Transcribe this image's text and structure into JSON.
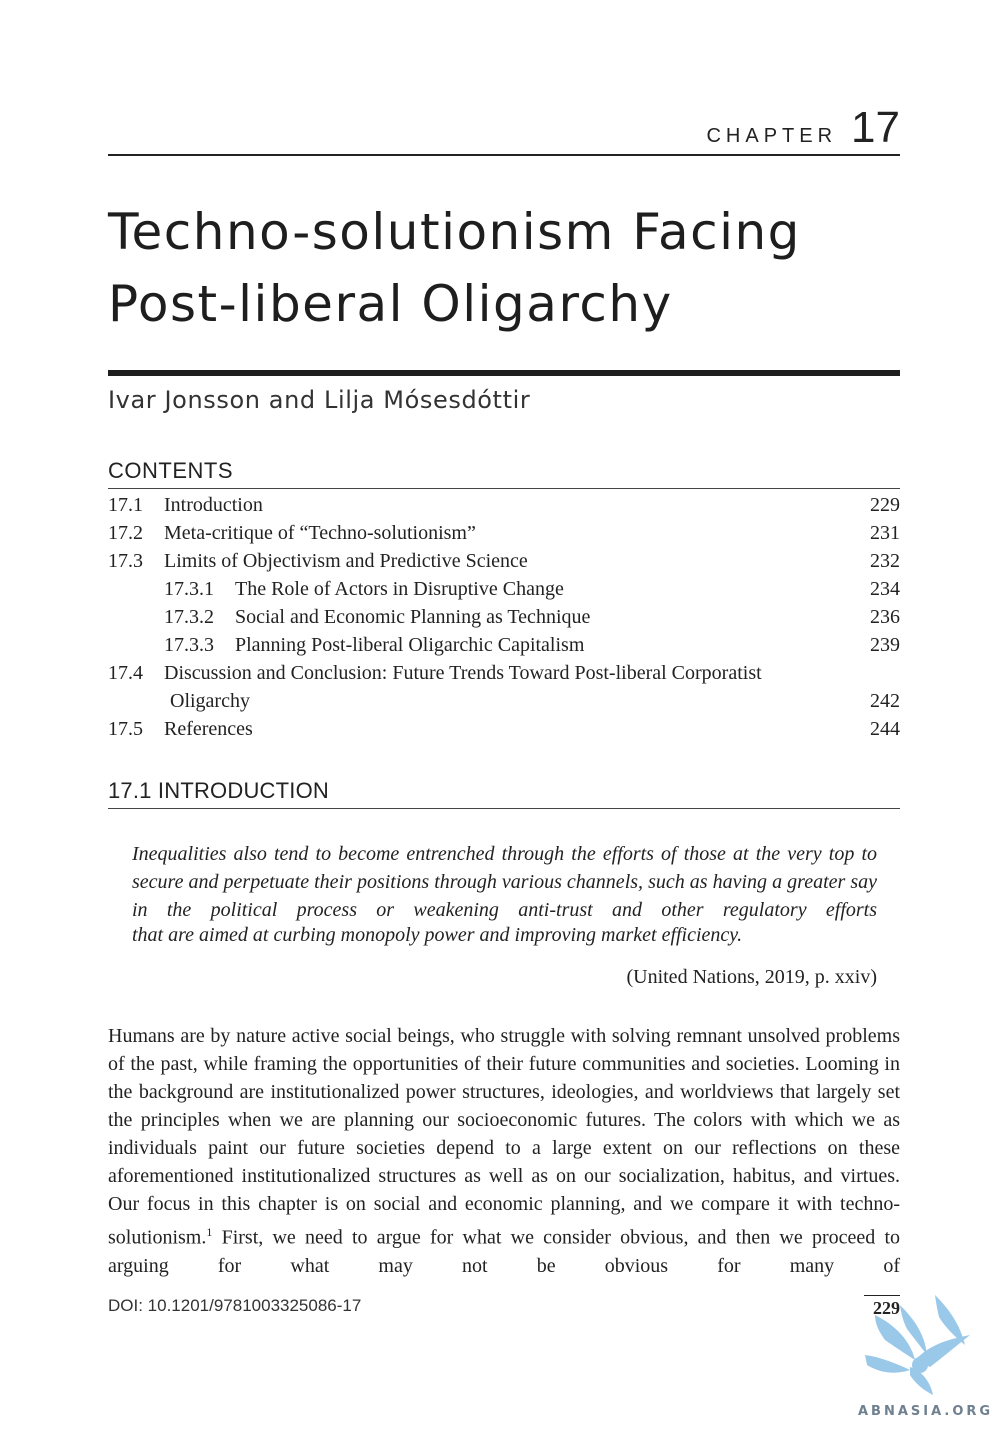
{
  "header": {
    "chapter_word": "CHAPTER",
    "chapter_number": "17"
  },
  "title_line1": "Techno-solutionism Facing",
  "title_line2": "Post-liberal Oligarchy",
  "authors": "Ivar Jonsson and Lilja Mósesdóttir",
  "contents": {
    "heading": "CONTENTS",
    "entries": [
      {
        "num": "17.1",
        "title": "Introduction",
        "page": "229"
      },
      {
        "num": "17.2",
        "title": "Meta-critique of “Techno-solutionism”",
        "page": "231"
      },
      {
        "num": "17.3",
        "title": "Limits of Objectivism and Predictive Science",
        "page": "232"
      },
      {
        "num": "17.3.1",
        "title": "The Role of Actors in Disruptive Change",
        "page": "234"
      },
      {
        "num": "17.3.2",
        "title": "Social and Economic Planning as Technique",
        "page": "236"
      },
      {
        "num": "17.3.3",
        "title": "Planning Post-liberal Oligarchic Capitalism",
        "page": "239"
      },
      {
        "num": "17.4",
        "title": "Discussion and Conclusion: Future Trends Toward Post-liberal Corporatist",
        "title_cont": "Oligarchy",
        "page": "242"
      },
      {
        "num": "17.5",
        "title": "References",
        "page": "244"
      }
    ]
  },
  "section": {
    "heading": "17.1  INTRODUCTION",
    "epigraph_justified": "Inequalities also tend to become entrenched through the efforts of those at the very top to secure and perpetuate their positions through various channels, such as having a greater say in the political process or weakening anti-trust and other regulatory efforts",
    "epigraph_last_line": "that are aimed at curbing monopoly power and improving market efficiency.",
    "citation": "(United Nations, 2019, p. xxiv)",
    "body": "Humans are by nature active social beings, who struggle with solving remnant unsolved problems of the past, while framing the opportunities of their future communities and societies. Looming in the background are institutionalized power structures, ideologies, and worldviews that largely set the principles when we are planning our socioeconomic futures. The colors with which we as individuals paint our future societies depend to a large extent on our reflections on these aforementioned institutionalized structures as well as on our socialization, habitus, and virtues. Our focus in this chapter is on social and economic planning, and we compare it with techno-solutionism.",
    "footnote_ref": "1",
    "body_cont": " First, we need to argue for what we consider obvious, and then we proceed to arguing for what may not be obvious for many of"
  },
  "footer": {
    "doi": "DOI: 10.1201/9781003325086-17",
    "page_number": "229"
  },
  "watermark": {
    "text": "ABNASIA.ORG",
    "color": "#8ec3e6"
  }
}
